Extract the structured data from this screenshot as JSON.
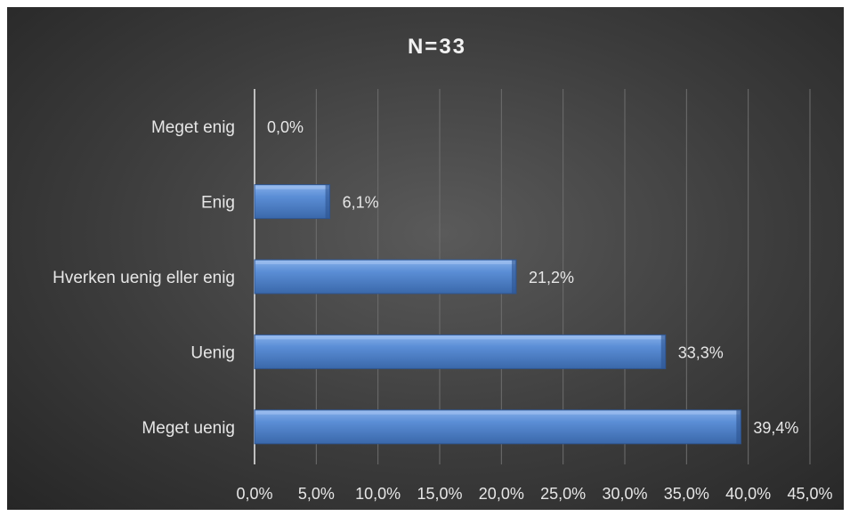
{
  "chart_data": {
    "type": "bar",
    "orientation": "horizontal",
    "title": "N=33",
    "categories": [
      "Meget enig",
      "Enig",
      "Hverken uenig eller enig",
      "Uenig",
      "Meget uenig"
    ],
    "values": [
      0.0,
      6.1,
      21.2,
      33.3,
      39.4
    ],
    "value_labels": [
      "0,0%",
      "6,1%",
      "21,2%",
      "33,3%",
      "39,4%"
    ],
    "xlim": [
      0,
      45
    ],
    "x_ticks": [
      0,
      5,
      10,
      15,
      20,
      25,
      30,
      35,
      40,
      45
    ],
    "x_tick_labels": [
      "0,0%",
      "5,0%",
      "10,0%",
      "15,0%",
      "20,0%",
      "25,0%",
      "30,0%",
      "35,0%",
      "40,0%",
      "45,0%"
    ],
    "xlabel": "",
    "ylabel": "",
    "grid": "vertical",
    "legend": "none",
    "colors": {
      "bar": "#4a7ec8",
      "bar_light": "#6f9ee0",
      "bar_dark": "#345f9c",
      "background": "#3c3c3c",
      "text": "#e6e6e6"
    }
  }
}
